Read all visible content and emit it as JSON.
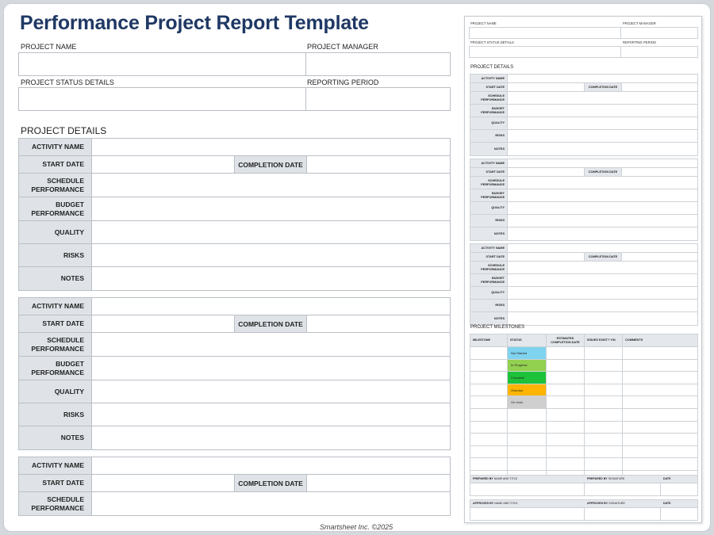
{
  "title": "Performance Project Report Template",
  "header": {
    "project_name": "PROJECT NAME",
    "project_manager": "PROJECT MANAGER",
    "project_status_details": "PROJECT STATUS DETAILS",
    "reporting_period": "REPORTING PERIOD"
  },
  "project_details_title": "PROJECT DETAILS",
  "activity_labels": {
    "activity_name": "ACTIVITY NAME",
    "start_date": "START DATE",
    "completion_date": "COMPLETION DATE",
    "schedule_1": "SCHEDULE",
    "schedule_2": "PERFORMANCE",
    "budget_1": "BUDGET",
    "budget_2": "PERFORMANCE",
    "quality": "QUALITY",
    "risks": "RISKS",
    "notes": "NOTES"
  },
  "footer": "Smartsheet Inc. ©2025",
  "preview": {
    "milestones_title": "PROJECT MILESTONES",
    "milestone_headers": {
      "milestone": "MILESTONE",
      "status": "STATUS",
      "est_1": "ESTIMATED",
      "est_2": "COMPLETION DATE",
      "issues_bold": "ISSUES EXIST?",
      "issues_rest": "Y/N",
      "comments": "COMMENTS"
    },
    "statuses": [
      {
        "label": "Not Started",
        "color": "#7fd3ef"
      },
      {
        "label": "In Progress",
        "color": "#92d050"
      },
      {
        "label": "Complete",
        "color": "#1ec23a"
      },
      {
        "label": "Overdue",
        "color": "#ffb400"
      },
      {
        "label": "On Hold",
        "color": "#cfcfcf"
      }
    ],
    "prepared_by_bold": "PREPARED BY",
    "prepared_by_rest": "NAME AND TITLE",
    "prepared_sig_bold": "PREPARED BY",
    "prepared_sig_rest": "SIGNATURE",
    "approved_by_bold": "APPROVED BY",
    "approved_by_rest": "NAME AND TITLE",
    "approved_sig_bold": "APPROVED BY",
    "approved_sig_rest": "SIGNATURE",
    "date": "DATE"
  },
  "colors": {
    "title": "#1f3864",
    "header_fill": "#dfe3e8",
    "border": "#b9bfc6"
  }
}
